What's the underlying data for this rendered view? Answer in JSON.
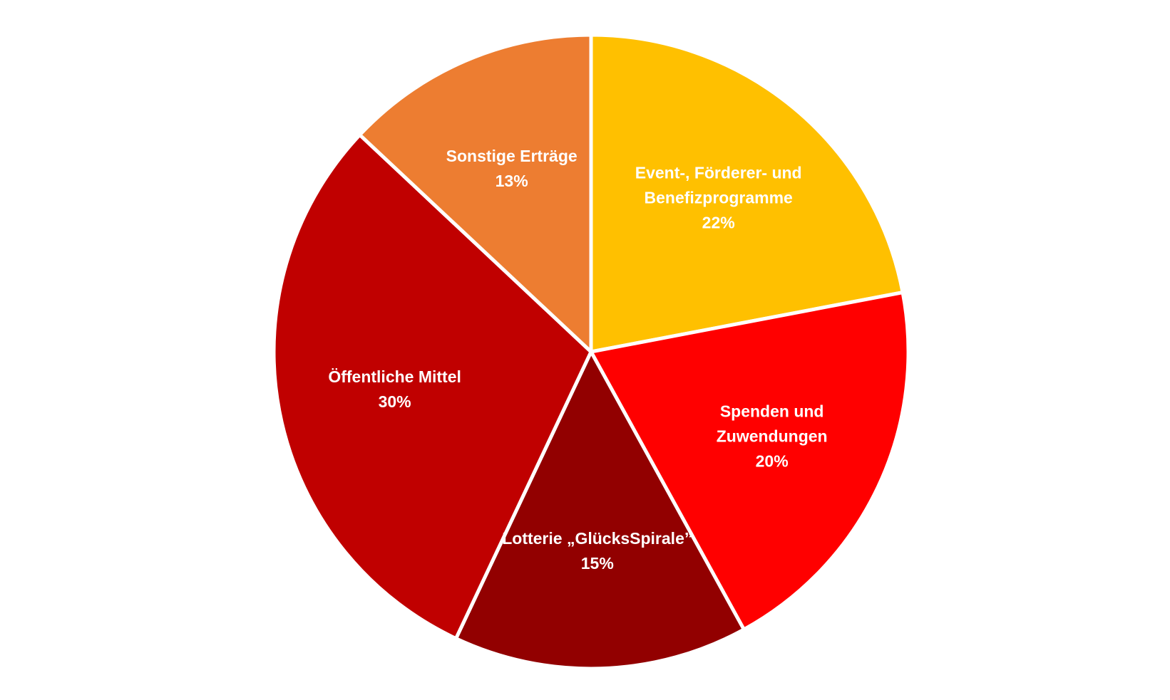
{
  "chart_data": {
    "type": "pie",
    "categories": [
      "Event-, Förderer- und Benefizprogramme",
      "Spenden und Zuwendungen",
      "Lotterie „GlücksSpirale”",
      "Öffentliche Mittel",
      "Sonstige Erträge"
    ],
    "values": [
      22,
      20,
      15,
      30,
      13
    ],
    "value_labels": [
      "22%",
      "20%",
      "15%",
      "30%",
      "13%"
    ],
    "colors": [
      "#FFC000",
      "#FF0000",
      "#920000",
      "#C00000",
      "#ED7D31"
    ]
  }
}
